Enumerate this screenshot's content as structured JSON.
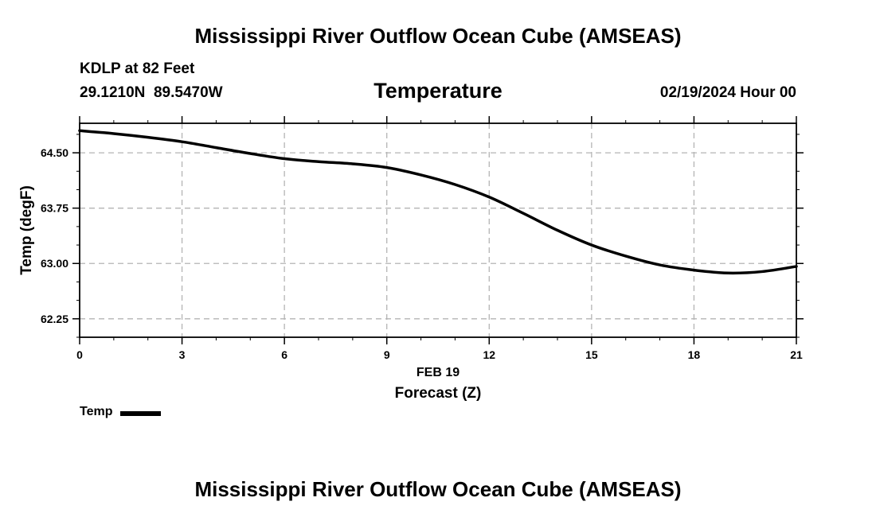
{
  "header": {
    "title": "Mississippi River Outflow Ocean Cube (AMSEAS)",
    "station": "KDLP at 82 Feet",
    "coordinates": "29.1210N  89.5470W",
    "variable": "Temperature",
    "datetime": "02/19/2024 Hour 00"
  },
  "footer": {
    "title": "Mississippi River Outflow Ocean Cube (AMSEAS)"
  },
  "legend": {
    "label": "Temp",
    "color": "#000000"
  },
  "chart_data": {
    "type": "line",
    "title": "Temperature",
    "xlabel": "Forecast (Z)",
    "xlabel_date": "FEB 19",
    "ylabel": "Temp (degF)",
    "xlim": [
      0,
      21
    ],
    "ylim": [
      62.0,
      64.9
    ],
    "x_ticks": [
      0,
      3,
      6,
      9,
      12,
      15,
      18,
      21
    ],
    "x_tick_labels": [
      "0",
      "3",
      "6",
      "9",
      "12",
      "15",
      "18",
      "21"
    ],
    "y_ticks": [
      62.25,
      63.0,
      63.75,
      64.5
    ],
    "y_tick_labels": [
      "62.25",
      "63.00",
      "63.75",
      "64.50"
    ],
    "grid": true,
    "series": [
      {
        "name": "Temp",
        "color": "#000000",
        "x": [
          0,
          1,
          2,
          3,
          4,
          5,
          6,
          7,
          8,
          9,
          10,
          11,
          12,
          13,
          14,
          15,
          16,
          17,
          18,
          19,
          20,
          21
        ],
        "y": [
          64.8,
          64.76,
          64.71,
          64.65,
          64.57,
          64.49,
          64.42,
          64.38,
          64.35,
          64.3,
          64.2,
          64.07,
          63.9,
          63.68,
          63.45,
          63.25,
          63.1,
          62.98,
          62.91,
          62.87,
          62.89,
          62.96
        ]
      }
    ]
  }
}
